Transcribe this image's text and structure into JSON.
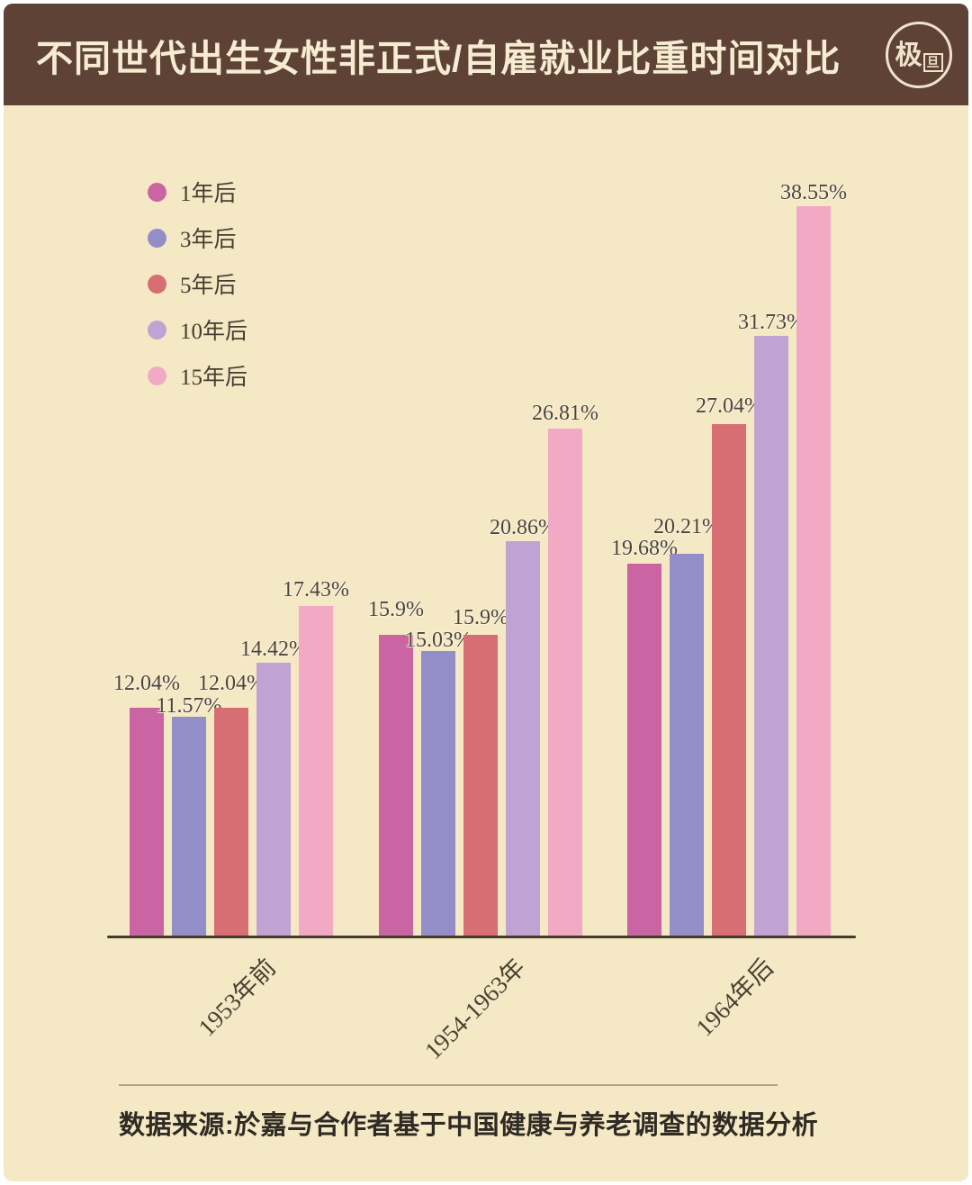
{
  "header": {
    "title": "不同世代出生女性非正式/自雇就业比重时间对比",
    "background": "#5e4236",
    "text_color": "#f6ecd2",
    "logo_text_main": "极",
    "logo_text_sub": "旦"
  },
  "chart_data": {
    "type": "bar",
    "title": "不同世代出生女性非正式/自雇就业比重时间对比",
    "categories": [
      "1953年前",
      "1954-1963年",
      "1964年后"
    ],
    "series": [
      {
        "name": "1年后",
        "color": "#ca64a2",
        "values": [
          12.04,
          15.9,
          19.68
        ]
      },
      {
        "name": "3年后",
        "color": "#938dc8",
        "values": [
          11.57,
          15.03,
          20.21
        ]
      },
      {
        "name": "5年后",
        "color": "#d66e74",
        "values": [
          12.04,
          15.9,
          27.04
        ]
      },
      {
        "name": "10年后",
        "color": "#c0a3d2",
        "values": [
          14.42,
          20.86,
          31.73
        ]
      },
      {
        "name": "15年后",
        "color": "#f2aac4",
        "values": [
          17.43,
          26.81,
          38.55
        ]
      }
    ],
    "value_labels": [
      [
        "12.04%",
        "11.57%",
        "12.04%",
        "14.42%",
        "17.43%"
      ],
      [
        "15.9%",
        "15.03%",
        "15.9%",
        "20.86%",
        "26.81%"
      ],
      [
        "19.68%",
        "20.21%",
        "27.04%",
        "31.73%",
        "38.55%"
      ]
    ],
    "unit": "%",
    "ylim": [
      0,
      40
    ],
    "grid": false,
    "legend_position": "top-left",
    "background": "#f5e8c4",
    "axis_color": "#463a28"
  },
  "footer": {
    "source": "数据来源:於嘉与合作者基于中国健康与养老调查的数据分析"
  }
}
